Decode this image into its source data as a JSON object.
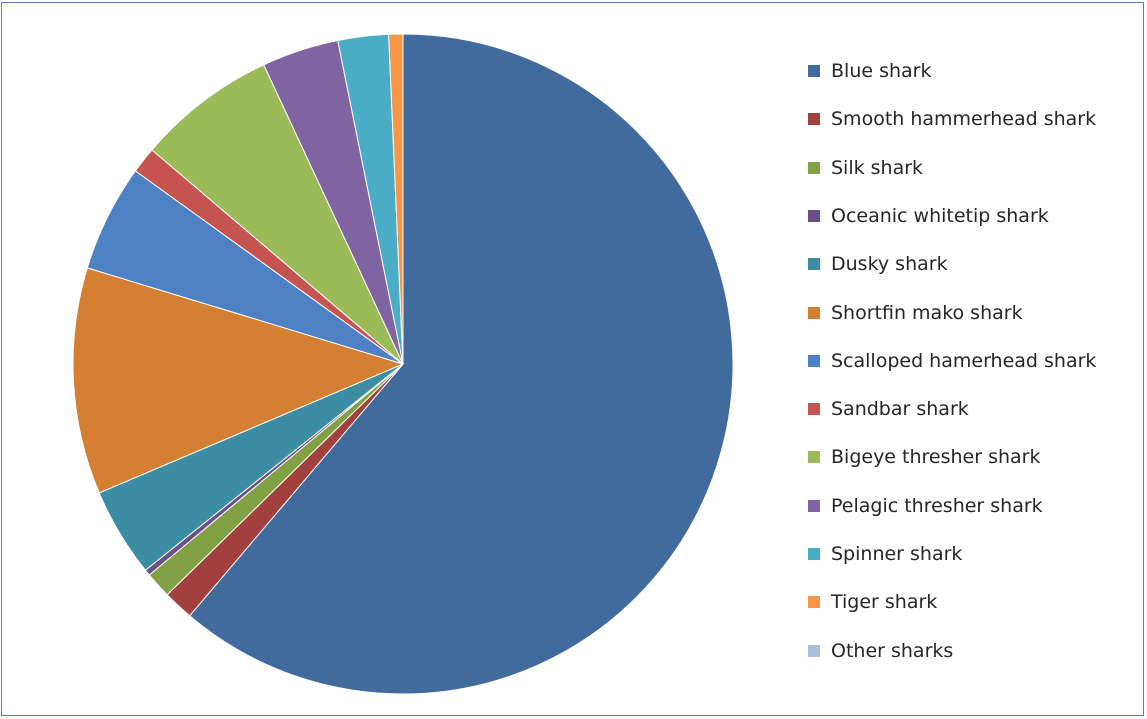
{
  "chart_data": {
    "type": "pie",
    "title": "",
    "start_angle_deg": 0,
    "direction": "clockwise",
    "series": [
      {
        "categories": [
          "Blue shark",
          "Smooth hammerhead shark",
          "Silk shark",
          "Oceanic whitetip shark",
          "Dusky shark",
          "Shortfin mako shark",
          "Scalloped hamerhead shark",
          "Sandbar shark",
          "Bigeye thresher shark",
          "Pelagic thresher shark",
          "Spinner shark",
          "Tiger shark",
          "Other sharks"
        ],
        "values": [
          61.8,
          1.5,
          1.3,
          0.3,
          4.4,
          11.2,
          5.3,
          1.3,
          6.9,
          3.8,
          2.5,
          0.7,
          0.0
        ]
      }
    ],
    "colors": [
      "#416a9d",
      "#a2403d",
      "#82a044",
      "#6b5088",
      "#3c8ca3",
      "#d57f33",
      "#4e80c4",
      "#c55350",
      "#9bbb59",
      "#8064a2",
      "#4bacc6",
      "#f79646",
      "#a9bedb"
    ],
    "legend": {
      "position": "right"
    },
    "data_labels": false
  }
}
